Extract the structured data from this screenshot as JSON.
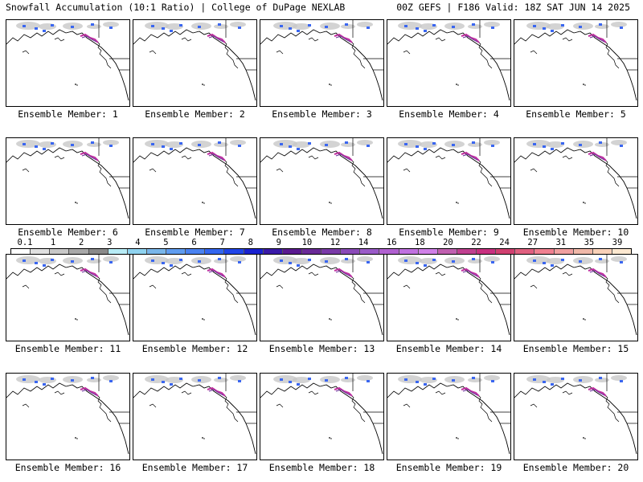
{
  "header": {
    "title": "Snowfall Accumulation (10:1 Ratio) | College of DuPage NEXLAB",
    "run_info": "00Z GEFS | F186 Valid: 18Z SAT JUN 14 2025"
  },
  "panels": [
    {
      "label": "Ensemble Member: 1"
    },
    {
      "label": "Ensemble Member: 2"
    },
    {
      "label": "Ensemble Member: 3"
    },
    {
      "label": "Ensemble Member: 4"
    },
    {
      "label": "Ensemble Member: 5"
    },
    {
      "label": "Ensemble Member: 6"
    },
    {
      "label": "Ensemble Member: 7"
    },
    {
      "label": "Ensemble Member: 8"
    },
    {
      "label": "Ensemble Member: 9"
    },
    {
      "label": "Ensemble Member: 10"
    },
    {
      "label": "Ensemble Member: 11"
    },
    {
      "label": "Ensemble Member: 12"
    },
    {
      "label": "Ensemble Member: 13"
    },
    {
      "label": "Ensemble Member: 14"
    },
    {
      "label": "Ensemble Member: 15"
    },
    {
      "label": "Ensemble Member: 16"
    },
    {
      "label": "Ensemble Member: 17"
    },
    {
      "label": "Ensemble Member: 18"
    },
    {
      "label": "Ensemble Member: 19"
    },
    {
      "label": "Ensemble Member: 20"
    }
  ],
  "legend": {
    "labels": [
      "0.1",
      "1",
      "2",
      "3",
      "4",
      "5",
      "6",
      "7",
      "8",
      "9",
      "10",
      "12",
      "14",
      "16",
      "18",
      "20",
      "22",
      "24",
      "27",
      "31",
      "35",
      "39"
    ],
    "colors": [
      "#ffffff",
      "#e0e0e0",
      "#c8c8c8",
      "#a8a8a8",
      "#8a8a8a",
      "#b8ecf6",
      "#8fd3f0",
      "#79b6ea",
      "#5f9cf0",
      "#4a82f0",
      "#3366f0",
      "#2045e8",
      "#1a22d0",
      "#3a1aa8",
      "#5a1a90",
      "#6a2a98",
      "#7a3aa8",
      "#8a4ab8",
      "#9a5ac8",
      "#b060d0",
      "#c070e0",
      "#d080e8",
      "#c060b0",
      "#c04090",
      "#c83080",
      "#d04070",
      "#e06080",
      "#f08090",
      "#f0a0a0",
      "#f0b8a8",
      "#f8d0b8",
      "#fce8d0"
    ]
  }
}
